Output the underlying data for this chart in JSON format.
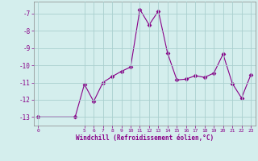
{
  "x": [
    0,
    4,
    5,
    6,
    7,
    8,
    9,
    10,
    11,
    12,
    13,
    14,
    15,
    16,
    17,
    18,
    19,
    20,
    21,
    22,
    23
  ],
  "y": [
    -13.0,
    -13.0,
    -11.1,
    -12.1,
    -11.0,
    -10.65,
    -10.35,
    -10.1,
    -6.75,
    -7.65,
    -6.85,
    -9.3,
    -10.85,
    -10.8,
    -10.6,
    -10.7,
    -10.45,
    -9.35,
    -11.05,
    -11.9,
    -10.55
  ],
  "line_color": "#880088",
  "marker": "D",
  "bg_color": "#d4eeed",
  "grid_color": "#aacfcf",
  "ylabel_ticks": [
    -13,
    -12,
    -11,
    -10,
    -9,
    -8,
    -7
  ],
  "xticks": [
    0,
    5,
    6,
    7,
    8,
    9,
    10,
    11,
    12,
    13,
    14,
    15,
    16,
    17,
    18,
    19,
    20,
    21,
    22,
    23
  ],
  "xlabel": "Windchill (Refroidissement éolien,°C)",
  "ylim": [
    -13.5,
    -6.3
  ],
  "xlim": [
    -0.5,
    23.5
  ]
}
